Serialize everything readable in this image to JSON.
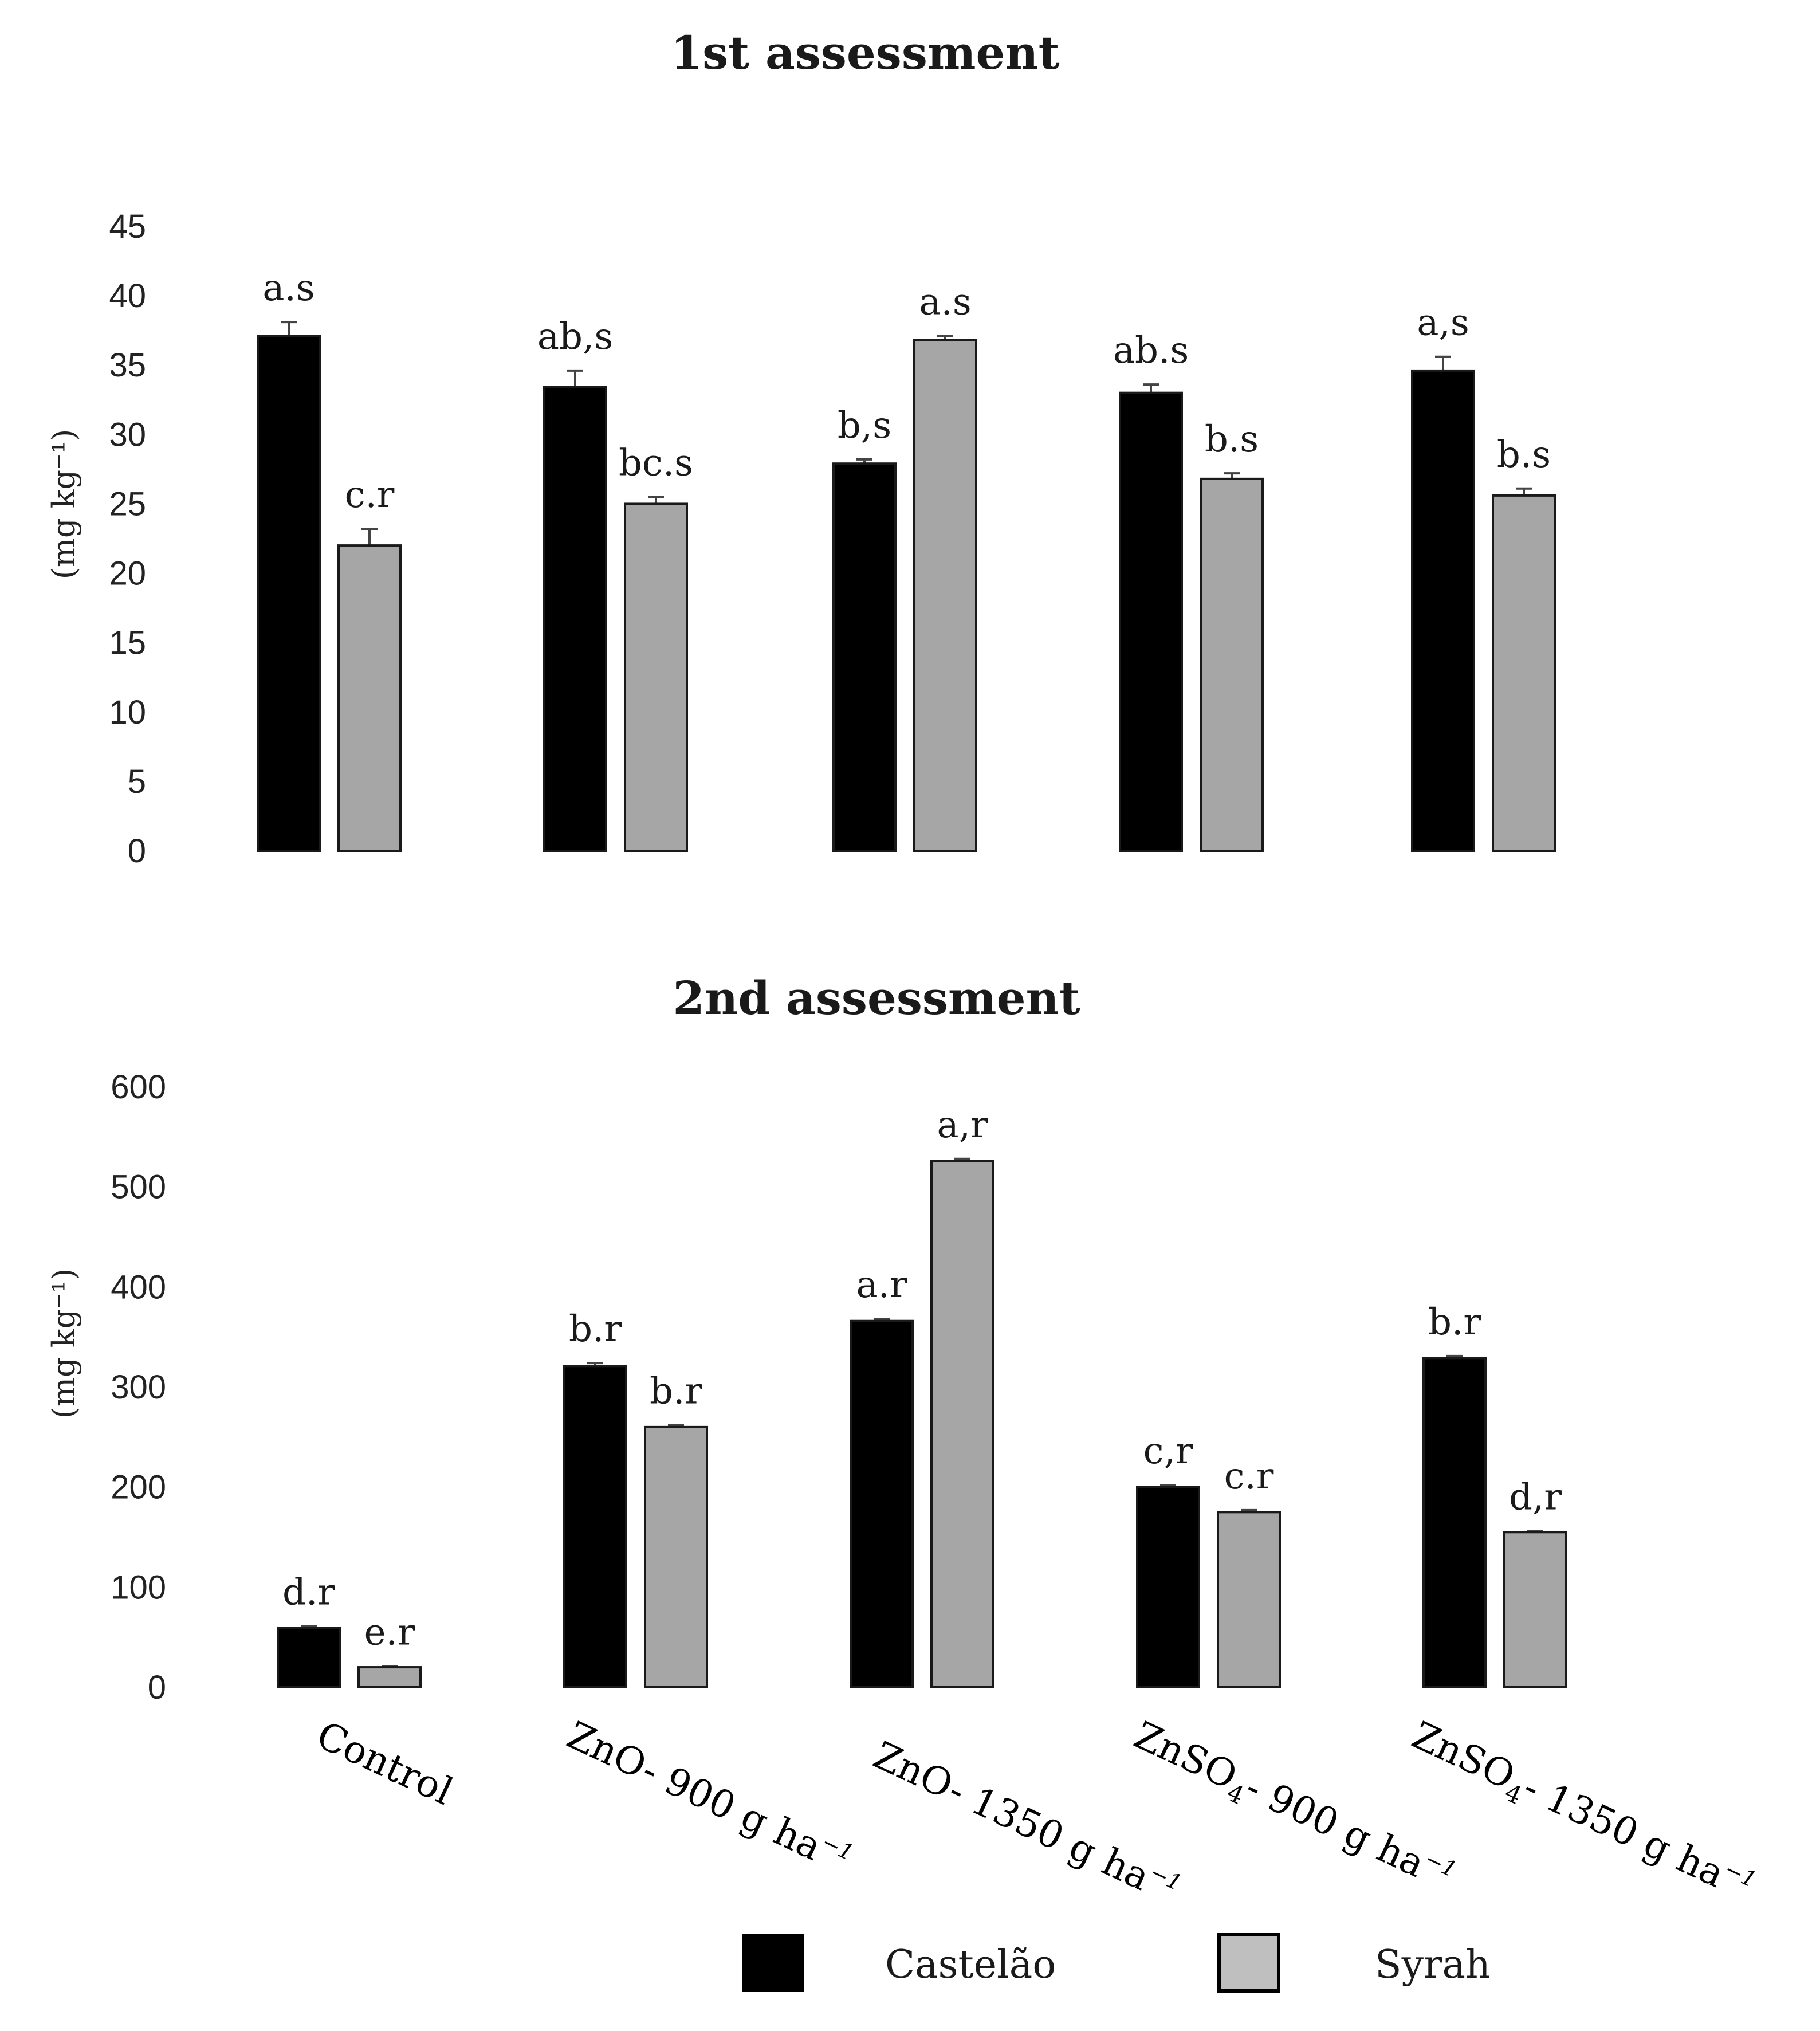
{
  "legend": {
    "items": [
      {
        "label": "Castelão",
        "color": "#000000"
      },
      {
        "label": "Syrah",
        "color": "#bfbfbf"
      }
    ]
  },
  "categories": [
    {
      "main": "Control",
      "sub": "",
      "rest": "",
      "sup": ""
    },
    {
      "main": "ZnO- 900 g ha",
      "sub": "",
      "rest": "",
      "sup": "−1"
    },
    {
      "main": "ZnO- 1350 g ha",
      "sub": "",
      "rest": "",
      "sup": "−1"
    },
    {
      "main": "ZnSO",
      "sub": "4",
      "rest": "- 900 g ha",
      "sup": "−1"
    },
    {
      "main": "ZnSO",
      "sub": "4",
      "rest": "- 1350 g ha",
      "sup": "−1"
    }
  ],
  "chart_data": [
    {
      "type": "bar",
      "title": "1st assessment",
      "ylabel": "(mg kg⁻¹)",
      "ylim": [
        0,
        45
      ],
      "yticks": [
        "0",
        "5",
        "10",
        "15",
        "20",
        "25",
        "30",
        "35",
        "40",
        "45"
      ],
      "categories": [
        "Control",
        "ZnO- 900 g ha−1",
        "ZnO- 1350 g ha−1",
        "ZnSO4- 900 g ha−1",
        "ZnSO4- 1350 g ha−1"
      ],
      "series": [
        {
          "name": "Castelão",
          "color": "#000000",
          "values": [
            37.1,
            33.4,
            27.9,
            33.0,
            34.6
          ],
          "errors": [
            1.0,
            1.2,
            0.3,
            0.6,
            1.0
          ],
          "labels": [
            "a.s",
            "ab,s",
            "b,s",
            "ab.s",
            "a,s"
          ]
        },
        {
          "name": "Syrah",
          "color": "#a6a6a6",
          "values": [
            22.0,
            25.0,
            36.8,
            26.8,
            25.6
          ],
          "errors": [
            1.2,
            0.5,
            0.3,
            0.4,
            0.5
          ],
          "labels": [
            "c.r",
            "bc.s",
            "a.s",
            "b.s",
            "b.s"
          ]
        }
      ]
    },
    {
      "type": "bar",
      "title": "2nd assessment",
      "ylabel": "(mg kg⁻¹)",
      "ylim": [
        0,
        600
      ],
      "yticks": [
        "0",
        "100",
        "200",
        "300",
        "400",
        "500",
        "600"
      ],
      "categories": [
        "Control",
        "ZnO- 900 g ha−1",
        "ZnO- 1350 g ha−1",
        "ZnSO4- 900 g ha−1",
        "ZnSO4- 1350 g ha−1"
      ],
      "series": [
        {
          "name": "Castelão",
          "color": "#000000",
          "values": [
            59,
            321,
            366,
            200,
            329
          ],
          "errors": [
            2,
            3,
            2,
            2,
            2
          ],
          "labels": [
            "d.r",
            "b.r",
            "a.r",
            "c,r",
            "b.r"
          ]
        },
        {
          "name": "Syrah",
          "color": "#a6a6a6",
          "values": [
            20,
            260,
            526,
            175,
            155
          ],
          "errors": [
            1,
            2,
            2,
            2,
            1
          ],
          "labels": [
            "e.r",
            "b.r",
            "a,r",
            "c.r",
            "d,r"
          ]
        }
      ]
    }
  ]
}
